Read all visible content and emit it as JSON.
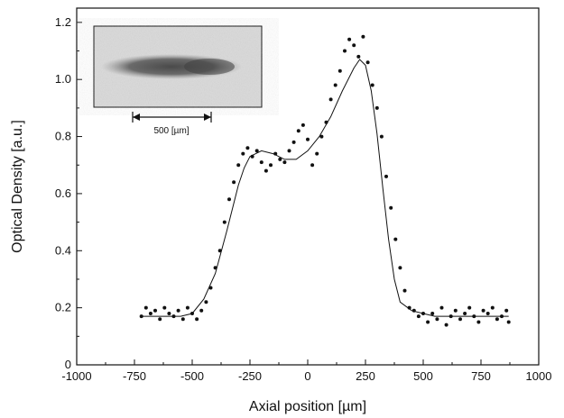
{
  "chart_data": {
    "type": "scatter",
    "xlabel": "Axial position [µm]",
    "ylabel": "Optical Density [a.u.]",
    "xlim": [
      -1000,
      1000
    ],
    "ylim": [
      0,
      1.25
    ],
    "x_ticks": [
      -1000,
      -750,
      -500,
      -250,
      0,
      250,
      500,
      750,
      1000
    ],
    "y_ticks": [
      0,
      0.2,
      0.4,
      0.6,
      0.8,
      1.0,
      1.2
    ],
    "x_tick_labels": [
      "-1000",
      "-750",
      "-500",
      "-250",
      "0",
      "250",
      "500",
      "750",
      "1000"
    ],
    "y_tick_labels": [
      "0",
      "0.2",
      "0.4",
      "0.6",
      "0.8",
      "1.0",
      "1.2"
    ],
    "grid": false,
    "series": [
      {
        "kind": "points",
        "x": [
          -720,
          -700,
          -680,
          -660,
          -640,
          -620,
          -600,
          -580,
          -560,
          -540,
          -520,
          -500,
          -480,
          -460,
          -440,
          -420,
          -400,
          -380,
          -360,
          -340,
          -320,
          -300,
          -280,
          -260,
          -240,
          -220,
          -200,
          -180,
          -160,
          -140,
          -120,
          -100,
          -80,
          -60,
          -40,
          -20,
          0,
          20,
          40,
          60,
          80,
          100,
          120,
          140,
          160,
          180,
          200,
          220,
          240,
          260,
          280,
          300,
          320,
          340,
          360,
          380,
          400,
          420,
          440,
          460,
          480,
          500,
          520,
          540,
          560,
          580,
          600,
          620,
          640,
          660,
          680,
          700,
          720,
          740,
          760,
          780,
          800,
          820,
          840,
          860,
          870
        ],
        "y": [
          0.17,
          0.2,
          0.18,
          0.19,
          0.16,
          0.2,
          0.18,
          0.17,
          0.19,
          0.16,
          0.2,
          0.18,
          0.16,
          0.19,
          0.22,
          0.27,
          0.34,
          0.4,
          0.5,
          0.58,
          0.64,
          0.7,
          0.74,
          0.76,
          0.73,
          0.75,
          0.71,
          0.68,
          0.7,
          0.74,
          0.72,
          0.71,
          0.75,
          0.78,
          0.82,
          0.84,
          0.79,
          0.7,
          0.74,
          0.8,
          0.85,
          0.93,
          0.98,
          1.03,
          1.1,
          1.14,
          1.12,
          1.08,
          1.15,
          1.06,
          0.98,
          0.9,
          0.8,
          0.66,
          0.55,
          0.44,
          0.34,
          0.26,
          0.2,
          0.19,
          0.17,
          0.18,
          0.15,
          0.18,
          0.16,
          0.2,
          0.14,
          0.17,
          0.19,
          0.16,
          0.18,
          0.2,
          0.17,
          0.15,
          0.19,
          0.18,
          0.2,
          0.16,
          0.17,
          0.19,
          0.15
        ]
      },
      {
        "kind": "fit-line",
        "x": [
          -720,
          -650,
          -550,
          -500,
          -450,
          -400,
          -350,
          -300,
          -275,
          -250,
          -200,
          -150,
          -100,
          -50,
          0,
          50,
          100,
          150,
          200,
          225,
          250,
          275,
          300,
          325,
          350,
          375,
          400,
          450,
          500,
          550,
          650,
          750,
          870
        ],
        "y": [
          0.17,
          0.17,
          0.17,
          0.18,
          0.23,
          0.32,
          0.47,
          0.63,
          0.69,
          0.73,
          0.75,
          0.74,
          0.72,
          0.72,
          0.75,
          0.8,
          0.87,
          0.96,
          1.04,
          1.07,
          1.05,
          0.96,
          0.81,
          0.62,
          0.44,
          0.3,
          0.22,
          0.19,
          0.18,
          0.17,
          0.17,
          0.17,
          0.17
        ]
      }
    ],
    "inset": {
      "scale_label": "500  [µm]",
      "description_kind": "grayscale-image-of-elongated-cloud"
    }
  }
}
